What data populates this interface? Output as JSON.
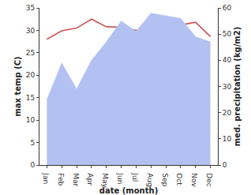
{
  "chart_data": {
    "type": "line",
    "categories": [
      "Jan",
      "Feb",
      "Mar",
      "Apr",
      "May",
      "Jun",
      "Jul",
      "Aug",
      "Sep",
      "Oct",
      "Nov",
      "Dec"
    ],
    "xlabel": "date (month)",
    "ylabel": "max temp (C)",
    "y2label": "med. precipitation (kg/m2)",
    "series": [
      {
        "name": "med. precipitation",
        "type": "area",
        "axis": "y2",
        "color": "#b3c0f2",
        "values": [
          25,
          39,
          29,
          40,
          47,
          55,
          51,
          58,
          57,
          56,
          49,
          47
        ]
      },
      {
        "name": "max temp",
        "type": "line",
        "color": "#cc5555",
        "values": [
          28,
          29.9,
          30.5,
          32.5,
          30.8,
          30.7,
          30,
          30.3,
          30.7,
          31.2,
          31.8,
          28.6
        ]
      }
    ],
    "ylim": [
      0,
      35
    ],
    "yticks": [
      0,
      5,
      10,
      15,
      20,
      25,
      30,
      35
    ],
    "y2lim": [
      0,
      60
    ],
    "y2ticks": [
      0,
      10,
      20,
      30,
      40,
      50,
      60
    ],
    "grid": false
  }
}
